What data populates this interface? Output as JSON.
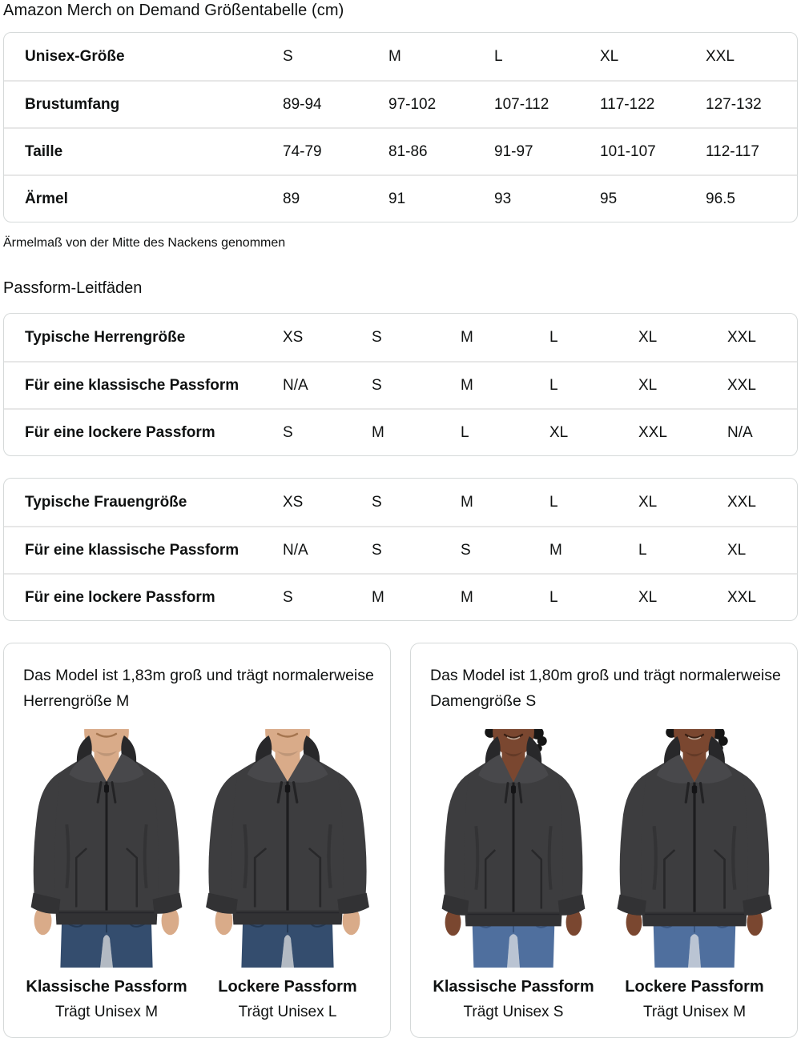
{
  "title": "Amazon Merch on Demand Größentabelle (cm)",
  "size_table": {
    "rows": [
      {
        "label": "Unisex-Größe",
        "values": [
          "S",
          "M",
          "L",
          "XL",
          "XXL"
        ]
      },
      {
        "label": "Brustumfang",
        "values": [
          "89-94",
          "97-102",
          "107-112",
          "117-122",
          "127-132"
        ]
      },
      {
        "label": "Taille",
        "values": [
          "74-79",
          "81-86",
          "91-97",
          "101-107",
          "112-117"
        ]
      },
      {
        "label": "Ärmel",
        "values": [
          "89",
          "91",
          "93",
          "95",
          "96.5"
        ]
      }
    ]
  },
  "sleeve_note": "Ärmelmaß von der Mitte des Nackens genommen",
  "fit_guides_heading": "Passform-Leitfäden",
  "mens_fit_table": {
    "rows": [
      {
        "label": "Typische Herrengröße",
        "values": [
          "XS",
          "S",
          "M",
          "L",
          "XL",
          "XXL"
        ]
      },
      {
        "label": "Für eine klassische Passform",
        "values": [
          "N/A",
          "S",
          "M",
          "L",
          "XL",
          "XXL"
        ]
      },
      {
        "label": "Für eine lockere Passform",
        "values": [
          "S",
          "M",
          "L",
          "XL",
          "XXL",
          "N/A"
        ]
      }
    ]
  },
  "womens_fit_table": {
    "rows": [
      {
        "label": "Typische Frauengröße",
        "values": [
          "XS",
          "S",
          "M",
          "L",
          "XL",
          "XXL"
        ]
      },
      {
        "label": "Für eine klassische Passform",
        "values": [
          "N/A",
          "S",
          "S",
          "M",
          "L",
          "XL"
        ]
      },
      {
        "label": "Für eine lockere Passform",
        "values": [
          "S",
          "M",
          "M",
          "L",
          "XL",
          "XXL"
        ]
      }
    ]
  },
  "model_cards": [
    {
      "description": "Das Model ist 1,83m groß und trägt normalerweise Herrengröße M",
      "figures": [
        {
          "fit_label": "Klassische Passform",
          "size_label": "Trägt Unisex M",
          "model": "male",
          "fit": "classic"
        },
        {
          "fit_label": "Lockere Passform",
          "size_label": "Trägt Unisex L",
          "model": "male",
          "fit": "loose"
        }
      ]
    },
    {
      "description": "Das Model ist 1,80m groß und trägt normalerweise Damengröße S",
      "figures": [
        {
          "fit_label": "Klassische Passform",
          "size_label": "Trägt Unisex S",
          "model": "female",
          "fit": "classic"
        },
        {
          "fit_label": "Lockere Passform",
          "size_label": "Trägt Unisex M",
          "model": "female",
          "fit": "loose"
        }
      ]
    }
  ],
  "colors": {
    "text": "#0f1111",
    "table_border": "#d5d9d9",
    "row_divider": "#e7e7e7",
    "hoodie": "#3d3d3f",
    "hoodie_dark": "#28282a",
    "hoodie_band": "#323234",
    "hoodie_flap": "#48484b",
    "skin_male": "#d9ab89",
    "skin_female": "#7a4730",
    "jeans_male": "#344d6e",
    "jeans_male_dark": "#243852",
    "jeans_female": "#4f6f9e",
    "jeans_female_dark": "#3a5680",
    "hair_female": "#161616"
  }
}
